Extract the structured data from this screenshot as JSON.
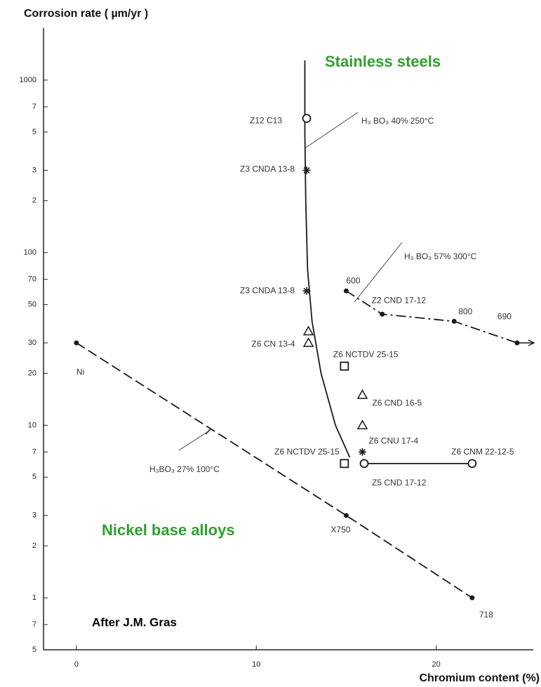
{
  "chart_data": {
    "type": "scatter",
    "title": "Corrosion rate ( µm/yr )",
    "x_label": "Chromium content (%)",
    "log_y": true,
    "xlim": [
      -1.83,
      25.4
    ],
    "ylim": [
      0.5,
      2000
    ],
    "xticks": [
      0,
      10,
      20
    ],
    "yticks": [
      {
        "value": 0.5,
        "label": "5"
      },
      {
        "value": 0.7,
        "label": "7"
      },
      1,
      2,
      3,
      5,
      7,
      10,
      20,
      30,
      50,
      70,
      100,
      {
        "value": 200,
        "label": "2"
      },
      {
        "value": 300,
        "label": "3"
      },
      {
        "value": 500,
        "label": "5"
      },
      {
        "value": 700,
        "label": "7"
      },
      1000
    ],
    "series": [
      {
        "line": "dashed",
        "marker": "dot",
        "color": "#1a1a1a",
        "x": [
          0,
          15,
          22
        ],
        "values": [
          30,
          3,
          1
        ],
        "point_labels": [
          "Ni",
          "X750",
          "718"
        ]
      },
      {
        "line": "dashdot",
        "marker": "dot",
        "end_arrow": true,
        "color": "#1a1a1a",
        "x": [
          15,
          17,
          21,
          24.5
        ],
        "values": [
          60,
          44,
          40,
          30
        ],
        "point_labels": [
          "600",
          "Z2 CND 17-12",
          "800",
          "690"
        ]
      },
      {
        "line": "solid",
        "marker": "none",
        "color": "#1a1a1a",
        "x": [
          12.7,
          12.7,
          12.75,
          12.85,
          13.1,
          13.6,
          14.4,
          15.2
        ],
        "values": [
          1300,
          500,
          200,
          80,
          40,
          20,
          10,
          6.5
        ]
      },
      {
        "line": "solid",
        "marker": "circle",
        "color": "#1a1a1a",
        "x": [
          16,
          22
        ],
        "values": [
          6,
          6
        ],
        "point_labels": [
          "Z5 CND 17-12",
          "Z6 CNM 22-12-5"
        ]
      },
      {
        "line": "none",
        "color": "#1a1a1a",
        "x": [
          12.8,
          12.8,
          12.8,
          12.9,
          12.9,
          14.9,
          15.9,
          15.9,
          15.9,
          14.9
        ],
        "values": [
          600,
          300,
          60,
          35,
          30,
          22,
          15,
          10,
          7,
          6
        ],
        "markers": [
          "circle",
          "asterisk",
          "asterisk",
          "triangle",
          "triangle",
          "square",
          "triangle",
          "triangle",
          "asterisk",
          "square"
        ],
        "point_labels": [
          "Z12 C13",
          "Z3 CNDA 13-8",
          "Z3 CNDA 13-8",
          null,
          "Z6 CN 13-4",
          "Z6 NCTDV 25-15",
          "Z6 CND 16-5",
          "Z6 CNU 17-4",
          null,
          "Z6 NCTDV 25-15"
        ]
      }
    ],
    "annotations": [
      {
        "text": "Stainless steels",
        "color": "#2ea02e"
      },
      {
        "text": "Nickel base alloys",
        "color": "#2ea02e"
      },
      {
        "text": "After J.M. Gras",
        "color": "#000000"
      },
      {
        "text": "H₃ BO₃ 40%   250°C",
        "color": "#333333"
      },
      {
        "text": "H₃ BO₃ 57%   300°C",
        "color": "#333333"
      },
      {
        "text": "H₃BO₃ 27%   100°C",
        "color": "#333333"
      }
    ]
  }
}
